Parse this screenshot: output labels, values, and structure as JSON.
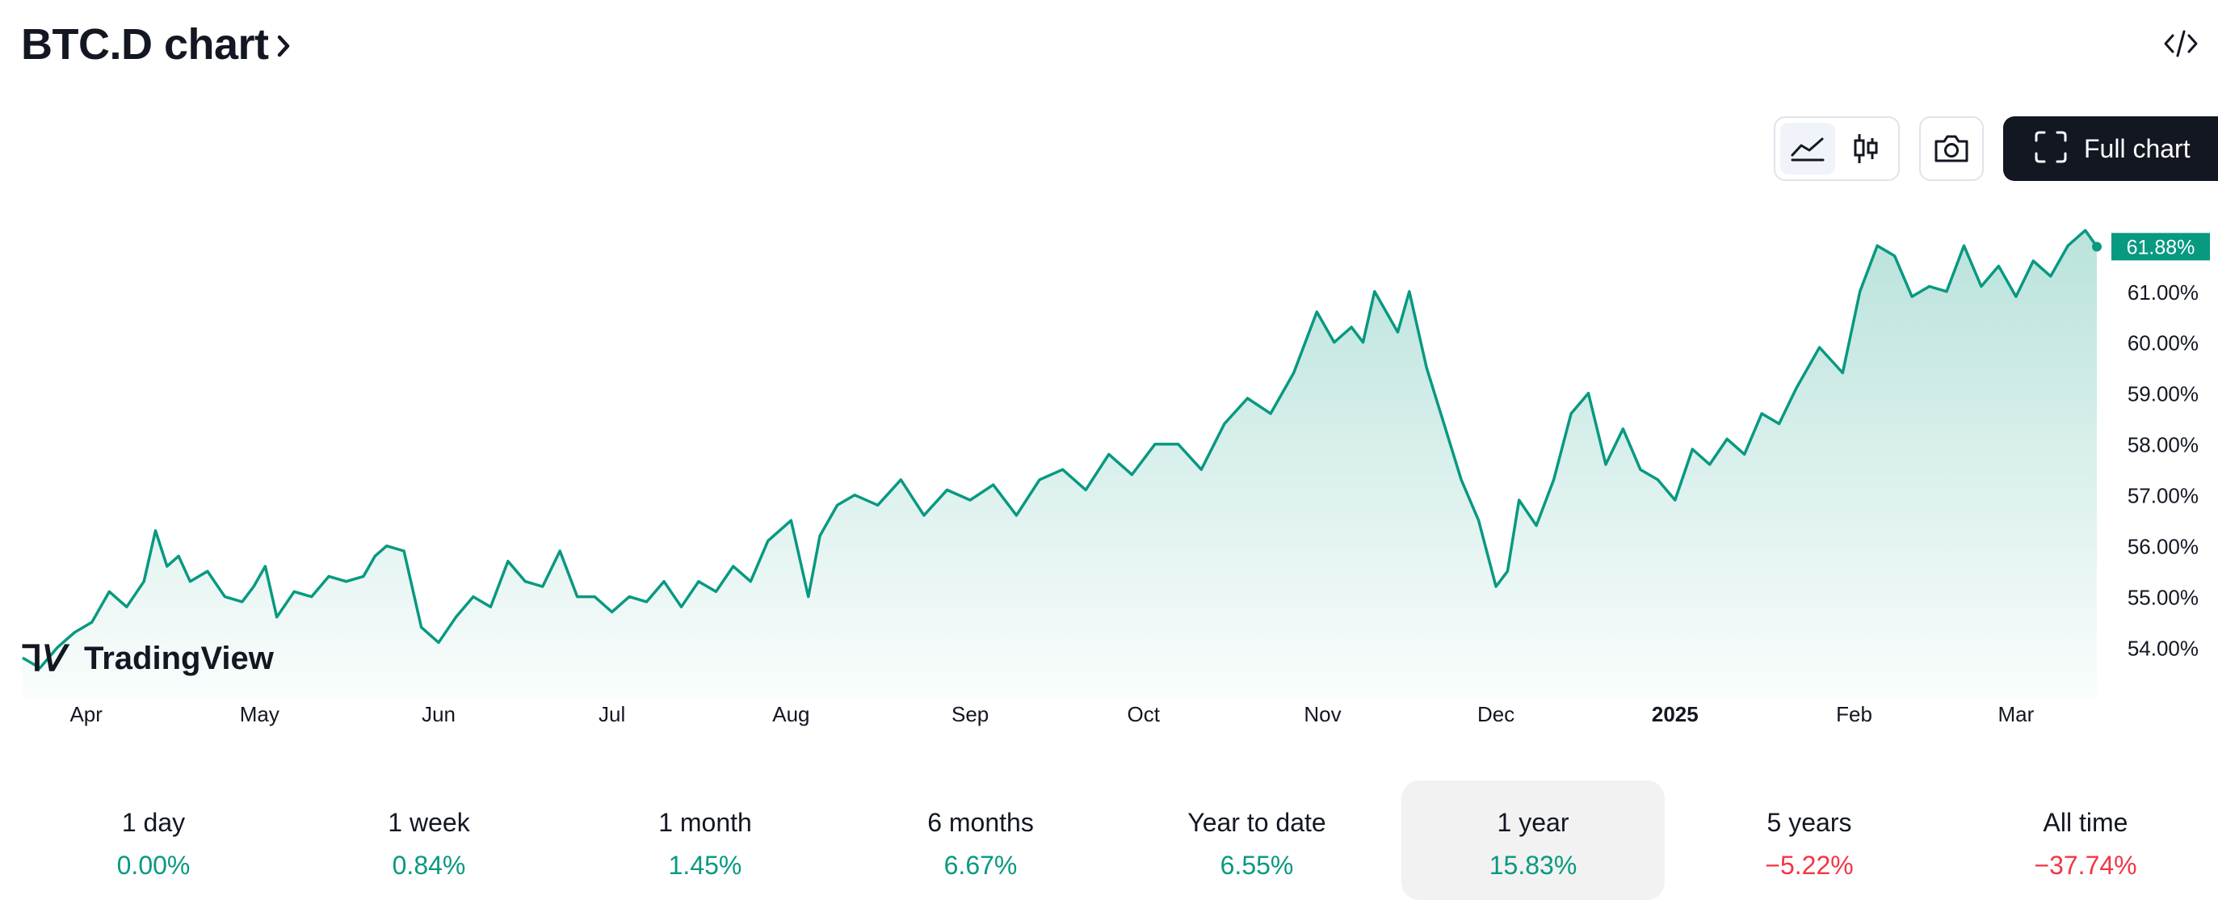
{
  "header": {
    "title": "BTC.D chart",
    "title_icon": "chevron-right-icon",
    "embed_icon": "code-embed-icon"
  },
  "toolbar": {
    "chart_types": [
      {
        "name": "area-chart-icon",
        "active": true
      },
      {
        "name": "candlestick-icon",
        "active": false
      }
    ],
    "snapshot_icon": "camera-icon",
    "full_chart_label": "Full chart",
    "full_chart_icon": "fullscreen-icon"
  },
  "watermark": "TradingView",
  "accent_color": "#089981",
  "chart_data": {
    "type": "area",
    "title": "",
    "xlabel": "",
    "ylabel": "",
    "y_unit": "%",
    "ylim": [
      53.2,
      62.6
    ],
    "grid": false,
    "last_value_label": "61.88%",
    "y_ticks": [
      {
        "value": 61,
        "label": "61.00%"
      },
      {
        "value": 60,
        "label": "60.00%"
      },
      {
        "value": 59,
        "label": "59.00%"
      },
      {
        "value": 58,
        "label": "58.00%"
      },
      {
        "value": 57,
        "label": "57.00%"
      },
      {
        "value": 56,
        "label": "56.00%"
      },
      {
        "value": 55,
        "label": "55.00%"
      },
      {
        "value": 54,
        "label": "54.00%"
      }
    ],
    "x_ticks": [
      {
        "date": "2024-04-01",
        "label": "Apr",
        "bold": false
      },
      {
        "date": "2024-05-01",
        "label": "May",
        "bold": false
      },
      {
        "date": "2024-06-01",
        "label": "Jun",
        "bold": false
      },
      {
        "date": "2024-07-01",
        "label": "Jul",
        "bold": false
      },
      {
        "date": "2024-08-01",
        "label": "Aug",
        "bold": false
      },
      {
        "date": "2024-09-01",
        "label": "Sep",
        "bold": false
      },
      {
        "date": "2024-10-01",
        "label": "Oct",
        "bold": false
      },
      {
        "date": "2024-11-01",
        "label": "Nov",
        "bold": false
      },
      {
        "date": "2024-12-01",
        "label": "Dec",
        "bold": false
      },
      {
        "date": "2025-01-01",
        "label": "2025",
        "bold": true
      },
      {
        "date": "2025-02-01",
        "label": "Feb",
        "bold": false
      },
      {
        "date": "2025-03-01",
        "label": "Mar",
        "bold": false
      }
    ],
    "series": [
      {
        "x": [
          "2024-03-21",
          "2024-03-24",
          "2024-03-27",
          "2024-03-30",
          "2024-04-02",
          "2024-04-05",
          "2024-04-08",
          "2024-04-11",
          "2024-04-13",
          "2024-04-15",
          "2024-04-17",
          "2024-04-19",
          "2024-04-22",
          "2024-04-25",
          "2024-04-28",
          "2024-04-30",
          "2024-05-02",
          "2024-05-04",
          "2024-05-07",
          "2024-05-10",
          "2024-05-13",
          "2024-05-16",
          "2024-05-19",
          "2024-05-21",
          "2024-05-23",
          "2024-05-26",
          "2024-05-29",
          "2024-06-01",
          "2024-06-04",
          "2024-06-07",
          "2024-06-10",
          "2024-06-13",
          "2024-06-16",
          "2024-06-19",
          "2024-06-22",
          "2024-06-25",
          "2024-06-28",
          "2024-07-01",
          "2024-07-04",
          "2024-07-07",
          "2024-07-10",
          "2024-07-13",
          "2024-07-16",
          "2024-07-19",
          "2024-07-22",
          "2024-07-25",
          "2024-07-28",
          "2024-08-01",
          "2024-08-04",
          "2024-08-06",
          "2024-08-09",
          "2024-08-12",
          "2024-08-16",
          "2024-08-20",
          "2024-08-24",
          "2024-08-28",
          "2024-09-01",
          "2024-09-05",
          "2024-09-09",
          "2024-09-13",
          "2024-09-17",
          "2024-09-21",
          "2024-09-25",
          "2024-09-29",
          "2024-10-03",
          "2024-10-07",
          "2024-10-11",
          "2024-10-15",
          "2024-10-19",
          "2024-10-23",
          "2024-10-27",
          "2024-10-31",
          "2024-11-03",
          "2024-11-06",
          "2024-11-08",
          "2024-11-10",
          "2024-11-12",
          "2024-11-14",
          "2024-11-16",
          "2024-11-19",
          "2024-11-22",
          "2024-11-25",
          "2024-11-28",
          "2024-12-01",
          "2024-12-03",
          "2024-12-05",
          "2024-12-08",
          "2024-12-11",
          "2024-12-14",
          "2024-12-17",
          "2024-12-20",
          "2024-12-23",
          "2024-12-26",
          "2024-12-29",
          "2025-01-01",
          "2025-01-04",
          "2025-01-07",
          "2025-01-10",
          "2025-01-13",
          "2025-01-16",
          "2025-01-19",
          "2025-01-22",
          "2025-01-26",
          "2025-01-30",
          "2025-02-02",
          "2025-02-05",
          "2025-02-08",
          "2025-02-11",
          "2025-02-14",
          "2025-02-17",
          "2025-02-20",
          "2025-02-23",
          "2025-02-26",
          "2025-03-01",
          "2025-03-04",
          "2025-03-07",
          "2025-03-10",
          "2025-03-13",
          "2025-03-15"
        ],
        "values": [
          53.8,
          53.6,
          54.0,
          54.3,
          54.5,
          55.1,
          54.8,
          55.3,
          56.3,
          55.6,
          55.8,
          55.3,
          55.5,
          55.0,
          54.9,
          55.2,
          55.6,
          54.6,
          55.1,
          55.0,
          55.4,
          55.3,
          55.4,
          55.8,
          56.0,
          55.9,
          54.4,
          54.1,
          54.6,
          55.0,
          54.8,
          55.7,
          55.3,
          55.2,
          55.9,
          55.0,
          55.0,
          54.7,
          55.0,
          54.9,
          55.3,
          54.8,
          55.3,
          55.1,
          55.6,
          55.3,
          56.1,
          56.5,
          55.0,
          56.2,
          56.8,
          57.0,
          56.8,
          57.3,
          56.6,
          57.1,
          56.9,
          57.2,
          56.6,
          57.3,
          57.5,
          57.1,
          57.8,
          57.4,
          58.0,
          58.0,
          57.5,
          58.4,
          58.9,
          58.6,
          59.4,
          60.6,
          60.0,
          60.3,
          60.0,
          61.0,
          60.6,
          60.2,
          61.0,
          59.5,
          58.4,
          57.3,
          56.5,
          55.2,
          55.5,
          56.9,
          56.4,
          57.3,
          58.6,
          59.0,
          57.6,
          58.3,
          57.5,
          57.3,
          56.9,
          57.9,
          57.6,
          58.1,
          57.8,
          58.6,
          58.4,
          59.1,
          59.9,
          59.4,
          61.0,
          61.9,
          61.7,
          60.9,
          61.1,
          61.0,
          61.9,
          61.1,
          61.5,
          60.9,
          61.6,
          61.3,
          61.9,
          62.2,
          61.88
        ]
      }
    ]
  },
  "periods": [
    {
      "label": "1 day",
      "value": "0.00%",
      "trend": "pos",
      "selected": false
    },
    {
      "label": "1 week",
      "value": "0.84%",
      "trend": "pos",
      "selected": false
    },
    {
      "label": "1 month",
      "value": "1.45%",
      "trend": "pos",
      "selected": false
    },
    {
      "label": "6 months",
      "value": "6.67%",
      "trend": "pos",
      "selected": false
    },
    {
      "label": "Year to date",
      "value": "6.55%",
      "trend": "pos",
      "selected": false
    },
    {
      "label": "1 year",
      "value": "15.83%",
      "trend": "pos",
      "selected": true
    },
    {
      "label": "5 years",
      "value": "−5.22%",
      "trend": "neg",
      "selected": false
    },
    {
      "label": "All time",
      "value": "−37.74%",
      "trend": "neg",
      "selected": false
    }
  ]
}
